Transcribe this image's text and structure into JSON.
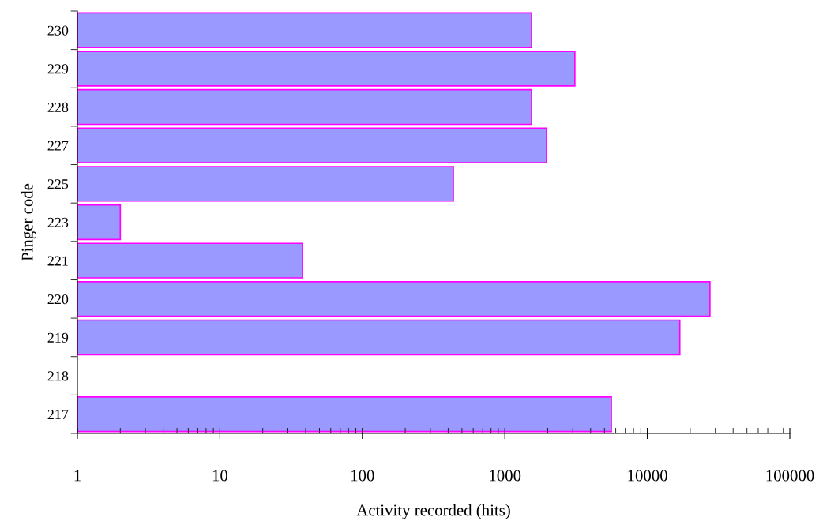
{
  "chart_data": {
    "type": "bar",
    "orientation": "horizontal",
    "log": "x",
    "categories": [
      "230",
      "229",
      "228",
      "227",
      "225",
      "223",
      "221",
      "220",
      "219",
      "218",
      "217"
    ],
    "values": [
      1540,
      3100,
      1540,
      1960,
      435,
      2,
      38,
      27500,
      16900,
      null,
      5590
    ],
    "color": "#9999ff",
    "xlim": [
      1,
      100000
    ],
    "xticks": [
      1,
      10,
      100,
      1000,
      10000,
      100000
    ],
    "xlabel": "Activity recorded (hits)",
    "ylabel": "Pinger code",
    "grid": false,
    "legend": false
  }
}
